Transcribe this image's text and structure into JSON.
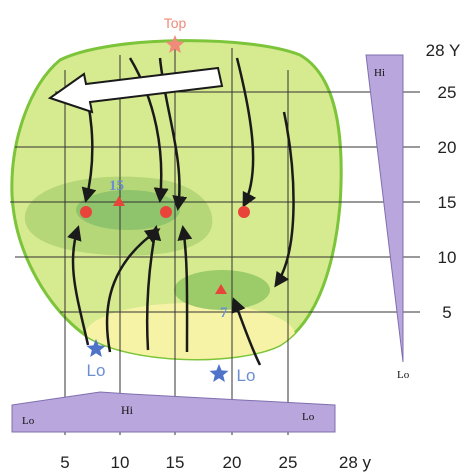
{
  "x_axis": {
    "ticks": [
      "5",
      "10",
      "15",
      "20",
      "25"
    ],
    "end_label": "28 y"
  },
  "y_axis": {
    "ticks": [
      "25",
      "20",
      "15",
      "10",
      "5"
    ],
    "end_label": "28 Y"
  },
  "bottom_gradient": {
    "left": "Lo",
    "center": "Hi",
    "right": "Lo"
  },
  "right_gradient": {
    "top": "Hi",
    "bottom": "Lo"
  },
  "star_labels": {
    "top": "Top",
    "left_low": "Lo",
    "right_low": "Lo"
  },
  "peak_labels": {
    "upper": "15",
    "lower": "7"
  },
  "colors": {
    "blob_outline": "#7cc43a",
    "blob_fill": "#d6ea8f",
    "zone_mid": "#b5d777",
    "zone_dark": "#8fc46c",
    "zone_yellow": "#f7f3a6",
    "gradient_purple": "#b8a6dc",
    "marker_red": "#e8443a",
    "star_red": "#f08a7a",
    "star_blue": "#4f73c8",
    "label_blue": "#6b8fd0"
  }
}
